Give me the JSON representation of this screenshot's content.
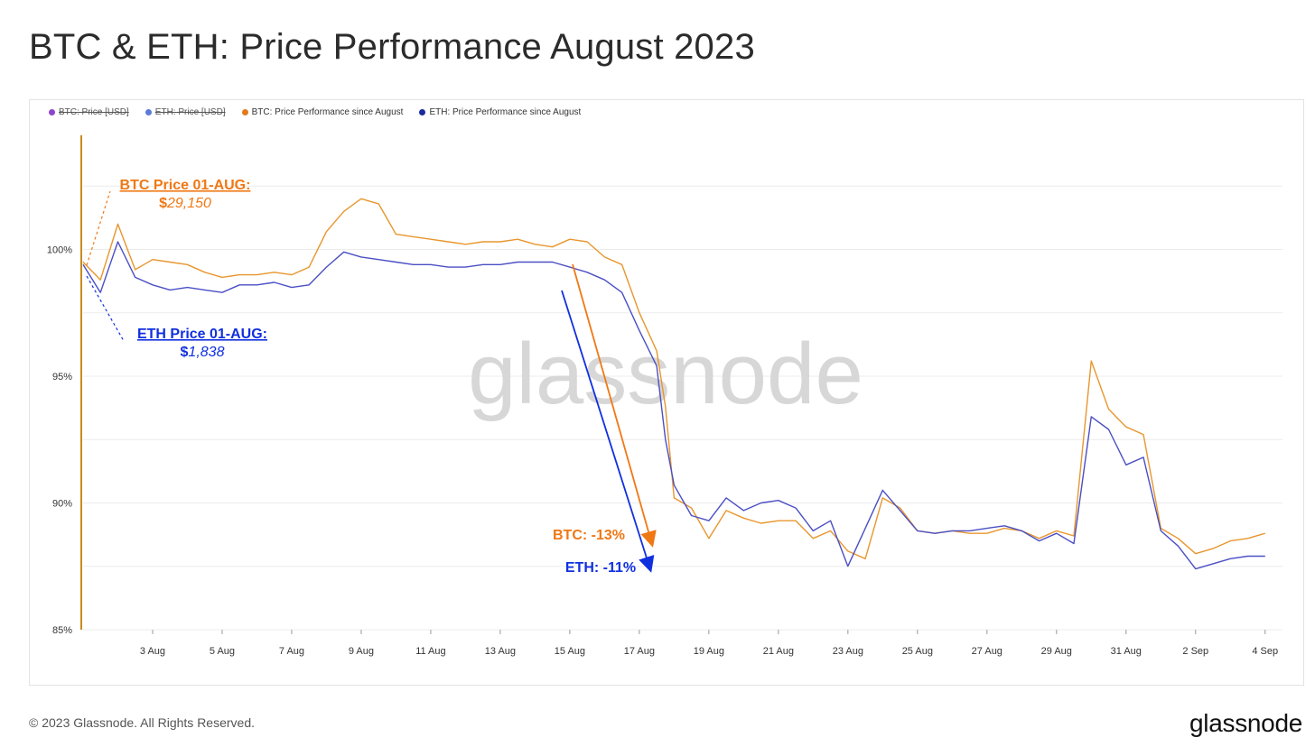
{
  "title": "BTC & ETH: Price Performance August 2023",
  "footer": "© 2023 Glassnode. All Rights Reserved.",
  "brand": "glassnode",
  "watermark": "glassnode",
  "colors": {
    "btc_perf": "#E8962E",
    "eth_perf": "#4A4FC4",
    "btc_annot": "#F07814",
    "eth_annot": "#1030E0",
    "axis_line": "#C98A1E",
    "btc_price_dot": "#8E44CC",
    "eth_price_dot": "#5B7BD8"
  },
  "legend": [
    {
      "label": "BTC: Price [USD]",
      "color": "#8E44CC",
      "disabled": true
    },
    {
      "label": "ETH: Price [USD]",
      "color": "#5B7BD8",
      "disabled": true
    },
    {
      "label": "BTC: Price Performance since August",
      "color": "#E07A1C",
      "disabled": false
    },
    {
      "label": "ETH: Price Performance since August",
      "color": "#1A2B9E",
      "disabled": false
    }
  ],
  "annotations": {
    "btc_start_title": "BTC Price 01-AUG:",
    "btc_start_value_prefix": "$",
    "btc_start_value": "29,150",
    "eth_start_title": "ETH Price 01-AUG:",
    "eth_start_value_prefix": "$",
    "eth_start_value": "1,838",
    "btc_change": "BTC: -13%",
    "eth_change": "ETH: -11%"
  },
  "chart_data": {
    "type": "line",
    "title": "BTC & ETH: Price Performance August 2023",
    "xlabel": "",
    "ylabel": "",
    "x_ticks": [
      "3 Aug",
      "5 Aug",
      "7 Aug",
      "9 Aug",
      "11 Aug",
      "13 Aug",
      "15 Aug",
      "17 Aug",
      "19 Aug",
      "21 Aug",
      "23 Aug",
      "25 Aug",
      "27 Aug",
      "29 Aug",
      "31 Aug",
      "2 Sep",
      "4 Sep"
    ],
    "y_ticks": [
      "85%",
      "90%",
      "95%",
      "100%"
    ],
    "ylim": [
      85,
      104.5
    ],
    "xlim": [
      "2023-08-01",
      "2023-09-04"
    ],
    "grid": true,
    "legend_position": "top-left",
    "series": [
      {
        "name": "BTC: Price Performance since August",
        "x": [
          "2023-08-01",
          "2023-08-01T12",
          "2023-08-02",
          "2023-08-02T12",
          "2023-08-03",
          "2023-08-03T12",
          "2023-08-04",
          "2023-08-04T12",
          "2023-08-05",
          "2023-08-05T12",
          "2023-08-06",
          "2023-08-06T12",
          "2023-08-07",
          "2023-08-07T12",
          "2023-08-08",
          "2023-08-08T12",
          "2023-08-09",
          "2023-08-09T12",
          "2023-08-10",
          "2023-08-10T12",
          "2023-08-11",
          "2023-08-11T12",
          "2023-08-12",
          "2023-08-12T12",
          "2023-08-13",
          "2023-08-13T12",
          "2023-08-14",
          "2023-08-14T12",
          "2023-08-15",
          "2023-08-15T12",
          "2023-08-16",
          "2023-08-16T12",
          "2023-08-17",
          "2023-08-17T12",
          "2023-08-17T18",
          "2023-08-18",
          "2023-08-18T12",
          "2023-08-19",
          "2023-08-19T12",
          "2023-08-20",
          "2023-08-20T12",
          "2023-08-21",
          "2023-08-21T12",
          "2023-08-22",
          "2023-08-22T12",
          "2023-08-23",
          "2023-08-23T12",
          "2023-08-24",
          "2023-08-24T12",
          "2023-08-25",
          "2023-08-25T12",
          "2023-08-26",
          "2023-08-26T12",
          "2023-08-27",
          "2023-08-27T12",
          "2023-08-28",
          "2023-08-28T12",
          "2023-08-29",
          "2023-08-29T12",
          "2023-08-30",
          "2023-08-30T12",
          "2023-08-31",
          "2023-08-31T12",
          "2023-09-01",
          "2023-09-01T12",
          "2023-09-02",
          "2023-09-02T12",
          "2023-09-03",
          "2023-09-03T12",
          "2023-09-04"
        ],
        "values": [
          99.5,
          98.8,
          101.0,
          99.2,
          99.6,
          99.5,
          99.4,
          99.1,
          98.9,
          99.0,
          99.0,
          99.1,
          99.0,
          99.3,
          100.7,
          101.5,
          102.0,
          101.8,
          100.6,
          100.5,
          100.4,
          100.3,
          100.2,
          100.3,
          100.3,
          100.4,
          100.2,
          100.1,
          100.4,
          100.3,
          99.7,
          99.4,
          97.5,
          96.0,
          93.8,
          90.2,
          89.8,
          88.6,
          89.7,
          89.4,
          89.2,
          89.3,
          89.3,
          88.6,
          88.9,
          88.1,
          87.8,
          90.2,
          89.8,
          88.9,
          88.8,
          88.9,
          88.8,
          88.8,
          89.0,
          88.9,
          88.6,
          88.9,
          88.7,
          95.6,
          93.7,
          93.0,
          92.7,
          89.0,
          88.6,
          88.0,
          88.2,
          88.5,
          88.6,
          88.8
        ]
      },
      {
        "name": "ETH: Price Performance since August",
        "x": [
          "2023-08-01",
          "2023-08-01T12",
          "2023-08-02",
          "2023-08-02T12",
          "2023-08-03",
          "2023-08-03T12",
          "2023-08-04",
          "2023-08-04T12",
          "2023-08-05",
          "2023-08-05T12",
          "2023-08-06",
          "2023-08-06T12",
          "2023-08-07",
          "2023-08-07T12",
          "2023-08-08",
          "2023-08-08T12",
          "2023-08-09",
          "2023-08-09T12",
          "2023-08-10",
          "2023-08-10T12",
          "2023-08-11",
          "2023-08-11T12",
          "2023-08-12",
          "2023-08-12T12",
          "2023-08-13",
          "2023-08-13T12",
          "2023-08-14",
          "2023-08-14T12",
          "2023-08-15",
          "2023-08-15T12",
          "2023-08-16",
          "2023-08-16T12",
          "2023-08-17",
          "2023-08-17T12",
          "2023-08-17T18",
          "2023-08-18",
          "2023-08-18T12",
          "2023-08-19",
          "2023-08-19T12",
          "2023-08-20",
          "2023-08-20T12",
          "2023-08-21",
          "2023-08-21T12",
          "2023-08-22",
          "2023-08-22T12",
          "2023-08-23",
          "2023-08-23T12",
          "2023-08-24",
          "2023-08-24T12",
          "2023-08-25",
          "2023-08-25T12",
          "2023-08-26",
          "2023-08-26T12",
          "2023-08-27",
          "2023-08-27T12",
          "2023-08-28",
          "2023-08-28T12",
          "2023-08-29",
          "2023-08-29T12",
          "2023-08-30",
          "2023-08-30T12",
          "2023-08-31",
          "2023-08-31T12",
          "2023-09-01",
          "2023-09-01T12",
          "2023-09-02",
          "2023-09-02T12",
          "2023-09-03",
          "2023-09-03T12",
          "2023-09-04"
        ],
        "values": [
          99.4,
          98.3,
          100.3,
          98.9,
          98.6,
          98.4,
          98.5,
          98.4,
          98.3,
          98.6,
          98.6,
          98.7,
          98.5,
          98.6,
          99.3,
          99.9,
          99.7,
          99.6,
          99.5,
          99.4,
          99.4,
          99.3,
          99.3,
          99.4,
          99.4,
          99.5,
          99.5,
          99.5,
          99.3,
          99.1,
          98.8,
          98.3,
          96.8,
          95.4,
          92.5,
          90.7,
          89.5,
          89.3,
          90.2,
          89.7,
          90.0,
          90.1,
          89.8,
          88.9,
          89.3,
          87.5,
          89.0,
          90.5,
          89.7,
          88.9,
          88.8,
          88.9,
          88.9,
          89.0,
          89.1,
          88.9,
          88.5,
          88.8,
          88.4,
          93.4,
          92.9,
          91.5,
          91.8,
          88.9,
          88.3,
          87.4,
          87.6,
          87.8,
          87.9,
          87.9
        ]
      }
    ]
  }
}
